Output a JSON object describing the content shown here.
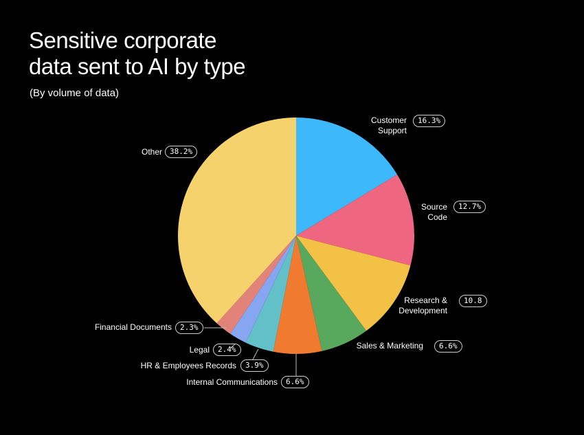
{
  "chart_data": {
    "type": "pie",
    "title": "Sensitive corporate data sent to AI by type",
    "subtitle": "(By volume of data)",
    "slices": [
      {
        "label": "Customer Support",
        "value": 16.3,
        "display": "16.3%",
        "color": "#3DB8FB"
      },
      {
        "label": "Source Code",
        "value": 12.7,
        "display": "12.7%",
        "color": "#EE6680"
      },
      {
        "label": "Research & Development",
        "value": 10.8,
        "display": "10.8",
        "color": "#F2C146"
      },
      {
        "label": "Sales & Marketing",
        "value": 6.6,
        "display": "6.6%",
        "color": "#58A85E"
      },
      {
        "label": "Internal Communications",
        "value": 6.6,
        "display": "6.6%",
        "color": "#EF7A30"
      },
      {
        "label": "HR & Employees Records",
        "value": 3.9,
        "display": "3.9%",
        "color": "#63BFC8"
      },
      {
        "label": "Legal",
        "value": 2.4,
        "display": "2.4%",
        "color": "#86A6F2"
      },
      {
        "label": "Financial Documents",
        "value": 2.3,
        "display": "2.3%",
        "color": "#E2837A"
      },
      {
        "label": "Other",
        "value": 38.2,
        "display": "38.2%",
        "color": "#F5D26B"
      }
    ],
    "start_angle": "12 o'clock",
    "direction": "clockwise",
    "legend": "none (direct labels)"
  },
  "header": {
    "title_line1": "Sensitive corporate",
    "title_line2": "data sent to AI by type",
    "subtitle": "(By volume of data)"
  },
  "labels": {
    "customer_support_l1": "Customer",
    "customer_support_l2": "Support",
    "source_code_l1": "Source",
    "source_code_l2": "Code",
    "rnd_l1": "Research &",
    "rnd_l2": "Development",
    "sales": "Sales & Marketing",
    "internal": "Internal Communications",
    "hr": "HR & Employees Records",
    "legal": "Legal",
    "financial": "Financial Documents",
    "other": "Other"
  }
}
